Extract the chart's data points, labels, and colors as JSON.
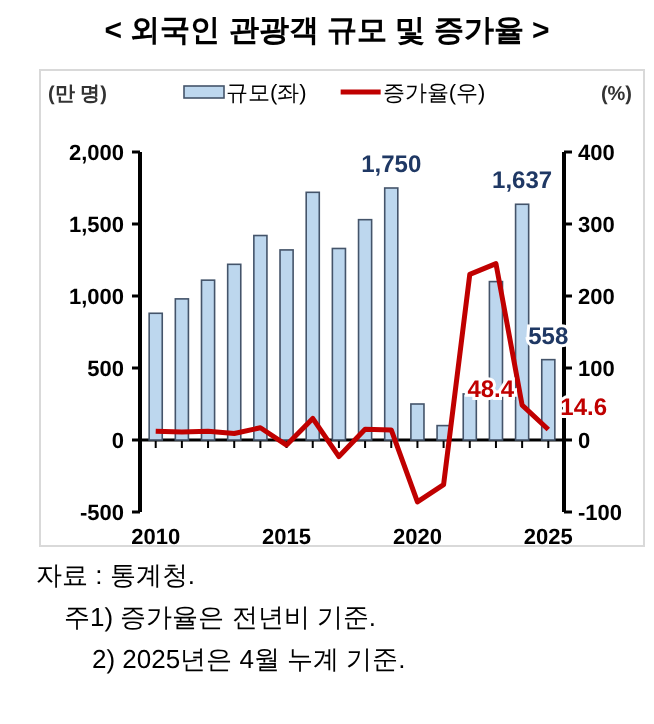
{
  "chart_data": {
    "type": "bar",
    "title": "< 외국인 관광객 규모 및 증가율 >",
    "ylabel": "(만 명)",
    "y2label": "(%)",
    "x": [
      2010,
      2011,
      2012,
      2013,
      2014,
      2015,
      2016,
      2017,
      2018,
      2019,
      2020,
      2021,
      2022,
      2023,
      2024,
      2025
    ],
    "xlim": [
      2009.4,
      2025.6
    ],
    "xticks": [
      2010,
      2015,
      2020,
      2025
    ],
    "ylim": [
      -500,
      2000
    ],
    "yticks": [
      -500,
      0,
      500,
      {
        "value": 1000,
        "label": "1,000"
      },
      {
        "value": 1500,
        "label": "1,500"
      },
      {
        "value": 2000,
        "label": "2,000"
      }
    ],
    "y2lim": [
      -100,
      400
    ],
    "y2ticks": [
      -100,
      0,
      100,
      200,
      300,
      400
    ],
    "series": [
      {
        "name": "규모(좌)",
        "color": "#bdd7ee",
        "values": [
          880,
          980,
          1110,
          1220,
          1420,
          1320,
          1720,
          1330,
          1530,
          1750,
          250,
          100,
          320,
          1100,
          1637,
          558
        ],
        "value_labels": [
          null,
          null,
          null,
          null,
          null,
          null,
          null,
          null,
          null,
          "1,750",
          null,
          null,
          null,
          null,
          "1,637",
          "558"
        ]
      },
      {
        "name": "증가율(우)",
        "type": "line",
        "axis": "y2",
        "color": "#c00000",
        "values": [
          12,
          11,
          12,
          9,
          17,
          -7,
          30,
          -23,
          15,
          14,
          -86,
          -62,
          230,
          245,
          48.4,
          14.6
        ],
        "value_labels": [
          null,
          null,
          null,
          null,
          null,
          null,
          null,
          null,
          null,
          null,
          null,
          null,
          null,
          null,
          "48.4",
          "14.6"
        ]
      }
    ],
    "legend": "top",
    "annotations": [
      "자료 : 통계청.",
      "주1) 증가율은 전년비 기준.",
      "2) 2025년은 4월 누계 기준."
    ]
  }
}
